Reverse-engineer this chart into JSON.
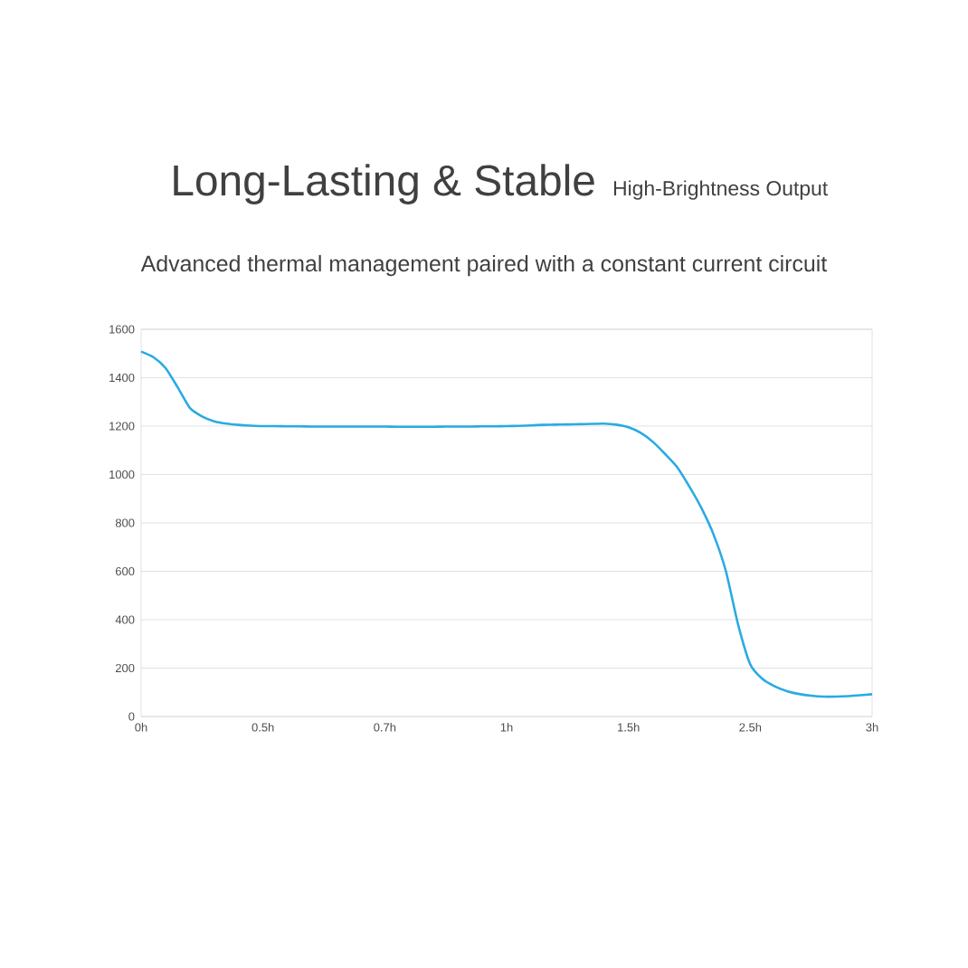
{
  "chart_data": {
    "type": "line",
    "title": "Long-Lasting & Stable",
    "subtitle": "Advanced thermal management paired with a constant current circuit",
    "annotations": [
      "High-Brightness Output"
    ],
    "categories": [
      "0h",
      null,
      null,
      null,
      null,
      null,
      null,
      null,
      null,
      null,
      "0.5h",
      null,
      null,
      null,
      null,
      null,
      null,
      null,
      null,
      null,
      "0.7h",
      null,
      null,
      null,
      null,
      null,
      null,
      null,
      null,
      null,
      "1h",
      null,
      null,
      null,
      null,
      null,
      null,
      null,
      null,
      null,
      "1.5h",
      null,
      null,
      null,
      null,
      null,
      null,
      null,
      null,
      null,
      "2.5h",
      null,
      null,
      null,
      null,
      null,
      null,
      null,
      null,
      null,
      "3h"
    ],
    "series": [
      {
        "color": "#29abe2",
        "values": [
          1508,
          1485,
          1440,
          1360,
          1275,
          1240,
          1220,
          1210,
          1205,
          1202,
          1200,
          1200,
          1199,
          1199,
          1198,
          1198,
          1198,
          1198,
          1198,
          1198,
          1198,
          1197,
          1197,
          1197,
          1197,
          1198,
          1198,
          1198,
          1199,
          1199,
          1200,
          1201,
          1203,
          1205,
          1206,
          1207,
          1208,
          1209,
          1210,
          1206,
          1195,
          1172,
          1135,
          1085,
          1030,
          950,
          860,
          750,
          600,
          380,
          215,
          155,
          125,
          105,
          93,
          86,
          82,
          82,
          84,
          88,
          92
        ]
      }
    ],
    "ylim": [
      0,
      1600
    ],
    "yticks": [
      0,
      200,
      400,
      600,
      800,
      1000,
      1200,
      1400,
      1600
    ],
    "grid": "y",
    "marker": "none",
    "line_style": "solid"
  }
}
